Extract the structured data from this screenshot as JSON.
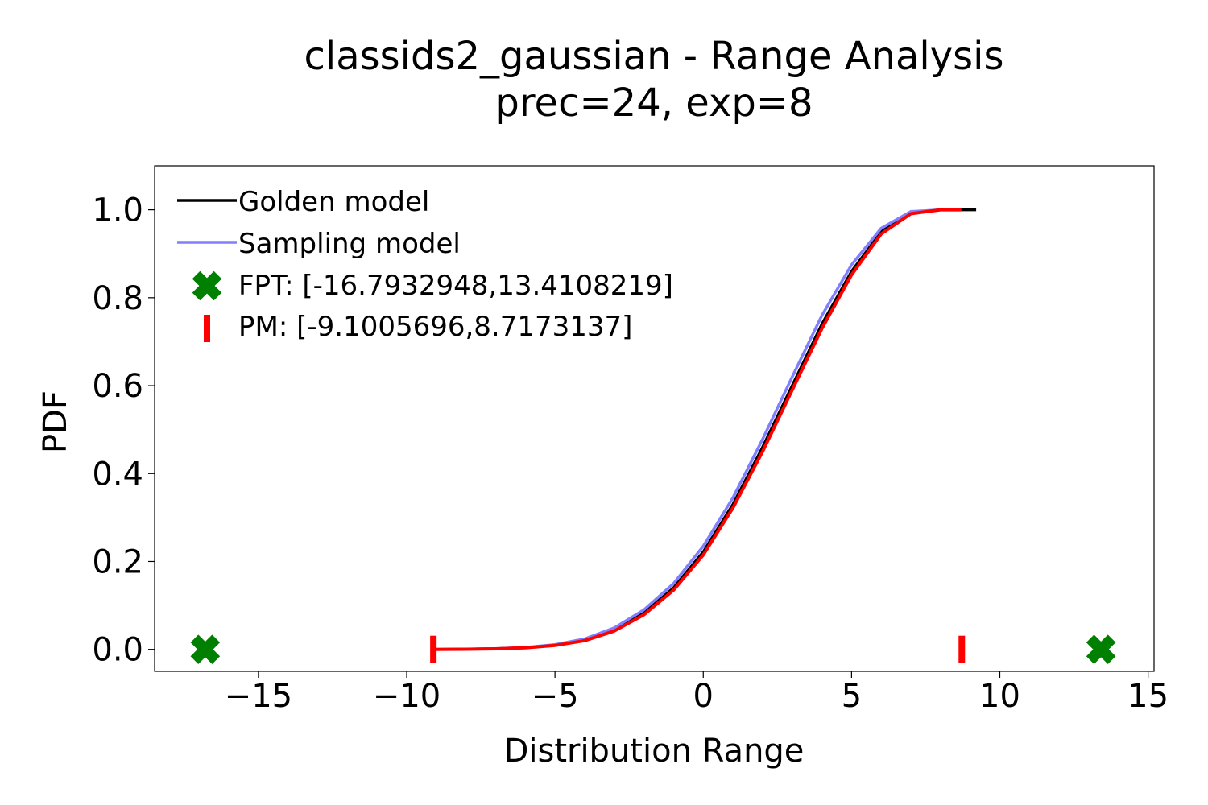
{
  "chart_data": {
    "type": "line",
    "title": "classids2_gaussian - Range Analysis",
    "subtitle": "prec=24, exp=8",
    "xlabel": "Distribution Range",
    "ylabel": "PDF",
    "xlim": [
      -18.5,
      15.2
    ],
    "ylim": [
      -0.05,
      1.1
    ],
    "xticks": [
      -15,
      -10,
      -5,
      0,
      5,
      10,
      15
    ],
    "xtick_labels": [
      "−15",
      "−10",
      "−5",
      "0",
      "5",
      "10",
      "15"
    ],
    "yticks": [
      0.0,
      0.2,
      0.4,
      0.6,
      0.8,
      1.0
    ],
    "ytick_labels": [
      "0.0",
      "0.2",
      "0.4",
      "0.6",
      "0.8",
      "1.0"
    ],
    "grid": false,
    "legend_position": "top-left",
    "series": [
      {
        "name": "Golden model",
        "color": "#000000",
        "x": [
          -9.1,
          -8,
          -7,
          -6,
          -5,
          -4,
          -3,
          -2,
          -1,
          0,
          1,
          2,
          3,
          4,
          5,
          6,
          7,
          8,
          9.2
        ],
        "y": [
          0.0,
          0.0005,
          0.0015,
          0.004,
          0.01,
          0.022,
          0.045,
          0.083,
          0.14,
          0.222,
          0.33,
          0.46,
          0.6,
          0.74,
          0.86,
          0.95,
          0.993,
          1.0,
          1.0
        ]
      },
      {
        "name": "Sampling model",
        "color": "#7f7fff",
        "x": [
          -9.1,
          -8,
          -7,
          -6,
          -5,
          -4,
          -3,
          -2,
          -1,
          0,
          1,
          2,
          3,
          4,
          5,
          6,
          7,
          8,
          8.7
        ],
        "y": [
          0.0,
          0.0005,
          0.0018,
          0.0045,
          0.011,
          0.024,
          0.049,
          0.09,
          0.15,
          0.235,
          0.345,
          0.478,
          0.62,
          0.76,
          0.875,
          0.958,
          0.996,
          1.0,
          1.0
        ]
      },
      {
        "name": "",
        "color": "#ff0000",
        "x": [
          -9.1,
          -8,
          -7,
          -6,
          -5,
          -4,
          -3,
          -2,
          -1,
          0,
          1,
          2,
          3,
          4,
          5,
          6,
          7,
          8,
          8.7
        ],
        "y": [
          0.0,
          0.0004,
          0.0013,
          0.0037,
          0.009,
          0.02,
          0.042,
          0.079,
          0.135,
          0.215,
          0.322,
          0.45,
          0.59,
          0.73,
          0.852,
          0.945,
          0.991,
          1.0,
          1.0
        ]
      }
    ],
    "markers": [
      {
        "name": "FPT: [-16.7932948,13.4108219]",
        "color": "#008000",
        "shape": "bold-x",
        "points": [
          [
            -16.7932948,
            0
          ],
          [
            13.4108219,
            0
          ]
        ]
      },
      {
        "name": "PM: [-9.1005696,8.7173137]",
        "color": "#ff0000",
        "shape": "vertical-bar",
        "points": [
          [
            -9.1005696,
            0
          ],
          [
            8.7173137,
            0
          ]
        ]
      }
    ]
  }
}
